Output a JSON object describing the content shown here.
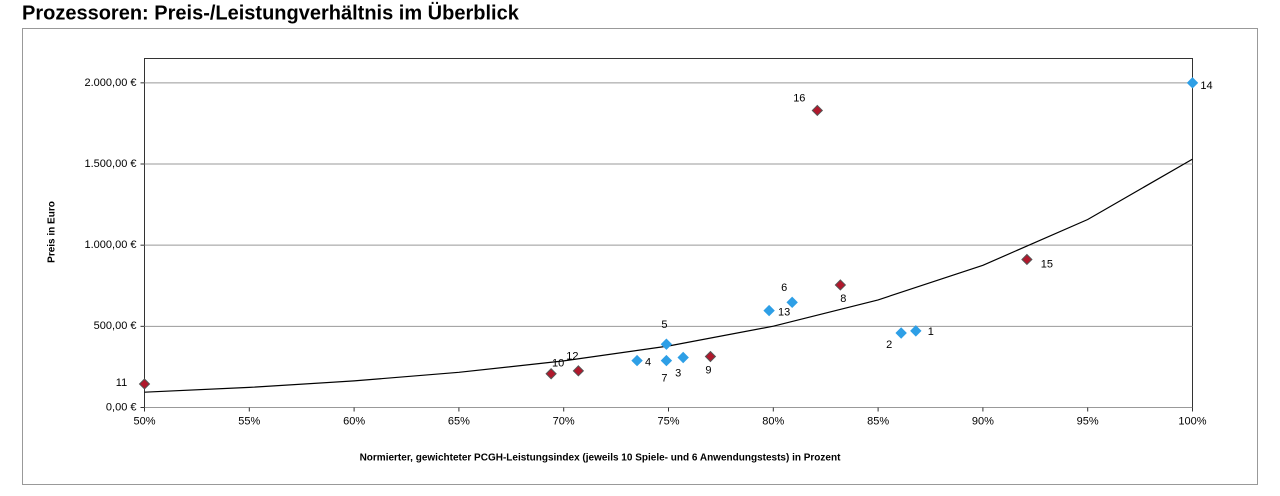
{
  "chart_data": {
    "type": "scatter",
    "title": "Prozessoren: Preis-/Leistungverhältnis im Überblick",
    "xlabel": "Normierter, gewichteter PCGH-Leistungsindex (jeweils 10 Spiele- und 6 Anwendungstests) in Prozent",
    "ylabel": "Preis in Euro",
    "xlim": [
      50,
      100
    ],
    "ylim": [
      0,
      2150
    ],
    "xticks": [
      {
        "value": 50,
        "label": "50%"
      },
      {
        "value": 55,
        "label": "55%"
      },
      {
        "value": 60,
        "label": "60%"
      },
      {
        "value": 65,
        "label": "65%"
      },
      {
        "value": 70,
        "label": "70%"
      },
      {
        "value": 75,
        "label": "75%"
      },
      {
        "value": 80,
        "label": "80%"
      },
      {
        "value": 85,
        "label": "85%"
      },
      {
        "value": 90,
        "label": "90%"
      },
      {
        "value": 95,
        "label": "95%"
      },
      {
        "value": 100,
        "label": "100%"
      }
    ],
    "yticks": [
      {
        "value": 0,
        "label": "0,00 €"
      },
      {
        "value": 500,
        "label": "500,00 €"
      },
      {
        "value": 1000,
        "label": "1.000,00 €"
      },
      {
        "value": 1500,
        "label": "1.500,00 €"
      },
      {
        "value": 2000,
        "label": "2.000,00 €"
      }
    ],
    "grid": true,
    "series": [
      {
        "color": "#2e9fe6",
        "labels": [
          "1",
          "2",
          "3",
          "4",
          "5",
          "6",
          "7",
          "13",
          "14"
        ],
        "x": [
          86.8,
          86.1,
          75.7,
          73.5,
          74.9,
          80.9,
          74.9,
          79.8,
          100
        ],
        "y": [
          472,
          459,
          308,
          289,
          390,
          648,
          289,
          597,
          2000
        ]
      },
      {
        "color": "#b0182c",
        "labels": [
          "8",
          "9",
          "10",
          "11",
          "12",
          "15",
          "16"
        ],
        "x": [
          83.2,
          77.0,
          69.4,
          50,
          70.7,
          92.1,
          82.1
        ],
        "y": [
          755,
          314,
          208,
          145,
          226,
          912,
          1830
        ]
      }
    ],
    "trendline": {
      "color": "#000000",
      "x": [
        50,
        55,
        60,
        65,
        70,
        75,
        80,
        85,
        90,
        95,
        100
      ],
      "y": [
        94,
        124,
        164,
        217,
        287,
        379,
        501,
        663,
        876,
        1158,
        1530
      ]
    }
  }
}
